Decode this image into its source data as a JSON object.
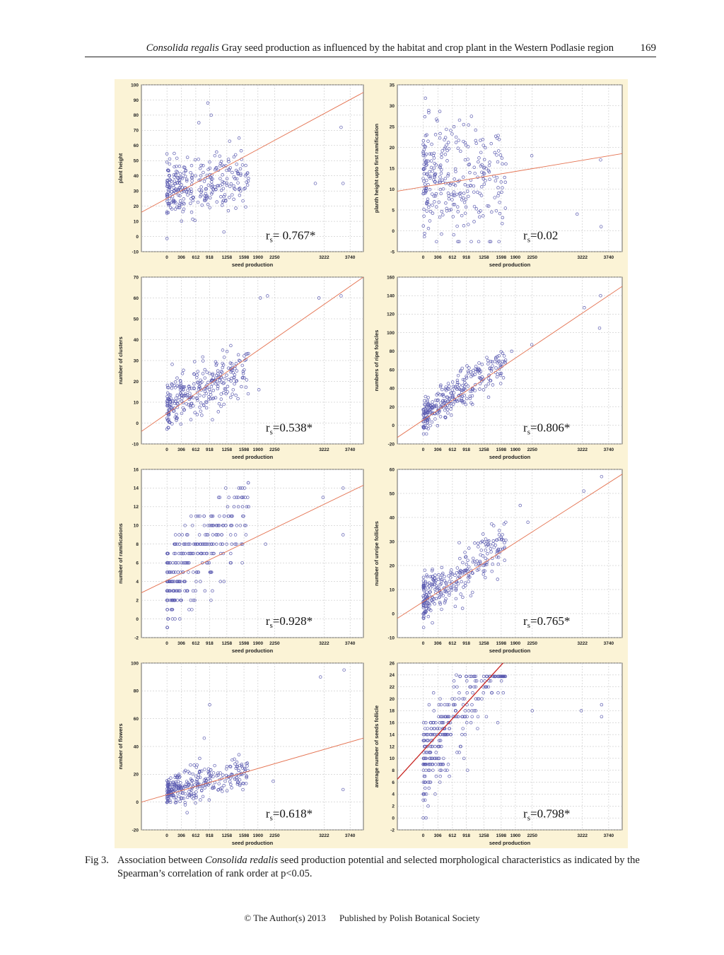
{
  "header": {
    "running_title_italic": "Consolida regalis",
    "running_title_rest": " Gray seed production as influenced by the habitat and crop plant in the Western Podlasie region",
    "page_number": "169"
  },
  "chart_data": [
    {
      "type": "scatter",
      "xlabel": "seed production",
      "ylabel": "plant height",
      "xticks": [
        "0",
        "306",
        "612",
        "918",
        "1258",
        "1598",
        "1900",
        "2250",
        "3222",
        "3740"
      ],
      "ylim": [
        -10,
        100
      ],
      "yticks": [
        -10,
        0,
        10,
        20,
        30,
        40,
        50,
        60,
        70,
        80,
        90,
        100
      ],
      "annotation": "= 0.767*",
      "fit_start": 16,
      "fit_end": 95,
      "cluster": {
        "mean": 30,
        "sd": 9,
        "slope": 0.6
      },
      "outliers": [
        [
          680,
          75
        ],
        [
          880,
          88
        ],
        [
          950,
          80
        ],
        [
          3050,
          35
        ],
        [
          3560,
          72
        ],
        [
          3600,
          35
        ],
        [
          1200,
          3
        ]
      ]
    },
    {
      "type": "scatter",
      "xlabel": "seed production",
      "ylabel": "planth height upto first ramification",
      "xticks": [
        "0",
        "306",
        "612",
        "918",
        "1258",
        "1598",
        "1900",
        "2250",
        "3222",
        "3740"
      ],
      "ylim": [
        -5,
        35
      ],
      "yticks": [
        -5,
        0,
        5,
        10,
        15,
        20,
        25,
        30,
        35
      ],
      "annotation": "=0.02",
      "fit_start": 9.5,
      "fit_end": 18.5,
      "cluster": {
        "mean": 12,
        "sd": 7,
        "slope": 0
      },
      "outliers": [
        [
          2240,
          18
        ],
        [
          3120,
          4
        ],
        [
          3580,
          17
        ],
        [
          3590,
          1
        ]
      ]
    },
    {
      "type": "scatter",
      "xlabel": "seed production",
      "ylabel": "number of clusters",
      "xticks": [
        "0",
        "306",
        "612",
        "918",
        "1258",
        "1598",
        "1900",
        "2250",
        "3222",
        "3740"
      ],
      "ylim": [
        -10,
        70
      ],
      "yticks": [
        -10,
        0,
        10,
        20,
        30,
        40,
        50,
        60,
        70
      ],
      "annotation": "=0.538*",
      "fit_start": -4,
      "fit_end": 70,
      "cluster": {
        "mean": 8,
        "sd": 6,
        "slope": 1.1
      },
      "outliers": [
        [
          1950,
          60
        ],
        [
          2100,
          61
        ],
        [
          3120,
          60
        ],
        [
          3560,
          61
        ],
        [
          1920,
          16
        ],
        [
          1200,
          9
        ]
      ]
    },
    {
      "type": "scatter",
      "xlabel": "seed production",
      "ylabel": "numbers of ripe follicles",
      "xticks": [
        "0",
        "306",
        "612",
        "918",
        "1258",
        "1598",
        "1900",
        "2250",
        "3222",
        "3740"
      ],
      "ylim": [
        -20,
        160
      ],
      "yticks": [
        -20,
        0,
        20,
        40,
        60,
        80,
        100,
        120,
        140,
        160
      ],
      "annotation": "=0.806*",
      "fit_start": -13,
      "fit_end": 150,
      "cluster": {
        "mean": 8,
        "sd": 10,
        "slope": 3.6
      },
      "outliers": [
        [
          3260,
          127
        ],
        [
          3580,
          140
        ],
        [
          3560,
          105
        ],
        [
          1820,
          80
        ],
        [
          2240,
          87
        ]
      ]
    },
    {
      "type": "scatter",
      "xlabel": "seed production",
      "ylabel": "number of ramifications",
      "xticks": [
        "0",
        "306",
        "612",
        "918",
        "1258",
        "1598",
        "1900",
        "2250",
        "3222",
        "3740"
      ],
      "ylim": [
        -2,
        16
      ],
      "yticks": [
        -2,
        0,
        2,
        4,
        6,
        8,
        10,
        12,
        14,
        16
      ],
      "annotation": "=0.928*",
      "fit_start": 2.8,
      "fit_end": 14.3,
      "cluster": {
        "mean": 3.5,
        "sd": 2.2,
        "slope": 0.5,
        "round": 1
      },
      "outliers": [
        [
          3200,
          13
        ],
        [
          3600,
          14
        ],
        [
          3600,
          9
        ],
        [
          2060,
          8
        ]
      ]
    },
    {
      "type": "scatter",
      "xlabel": "seed production",
      "ylabel": "number of unripe follicles",
      "xticks": [
        "0",
        "306",
        "612",
        "918",
        "1258",
        "1598",
        "1900",
        "2250",
        "3222",
        "3740"
      ],
      "ylim": [
        -10,
        60
      ],
      "yticks": [
        -10,
        0,
        10,
        20,
        30,
        40,
        50,
        60
      ],
      "annotation": "=0.765*",
      "fit_start": -2,
      "fit_end": 58,
      "cluster": {
        "mean": 6,
        "sd": 5,
        "slope": 1.3
      },
      "outliers": [
        [
          3250,
          51
        ],
        [
          3600,
          57
        ],
        [
          2160,
          38
        ],
        [
          2000,
          45
        ]
      ]
    },
    {
      "type": "scatter",
      "xlabel": "seed production",
      "ylabel": "number of flowers",
      "xticks": [
        "0",
        "306",
        "612",
        "918",
        "1258",
        "1598",
        "1900",
        "2250",
        "3222",
        "3740"
      ],
      "ylim": [
        -20,
        100
      ],
      "yticks": [
        -20,
        0,
        20,
        40,
        60,
        80,
        100
      ],
      "annotation": "=0.618*",
      "fit_start": 0,
      "fit_end": 46,
      "cluster": {
        "mean": 7,
        "sd": 6,
        "slope": 0.8
      },
      "outliers": [
        [
          3150,
          90
        ],
        [
          3620,
          95
        ],
        [
          3600,
          9
        ],
        [
          920,
          70
        ],
        [
          800,
          46
        ],
        [
          2220,
          15
        ]
      ]
    },
    {
      "type": "scatter",
      "xlabel": "seed production",
      "ylabel": "average number of seeds follicle",
      "xticks": [
        "0",
        "306",
        "612",
        "918",
        "1258",
        "1598",
        "1900",
        "2250",
        "3222",
        "3740"
      ],
      "ylim": [
        -2,
        26
      ],
      "yticks": [
        -2,
        0,
        2,
        4,
        6,
        8,
        10,
        12,
        14,
        16,
        18,
        20,
        22,
        24,
        26
      ],
      "annotation": "=0.798*",
      "fit_start": 6.5,
      "fit_end": 48,
      "cluster": {
        "mean": 10,
        "sd": 3.5,
        "slope": 1.0,
        "round": 1
      },
      "outliers": [
        [
          3200,
          18
        ],
        [
          3600,
          19
        ],
        [
          3600,
          17
        ],
        [
          2250,
          18
        ],
        [
          0,
          0
        ],
        [
          60,
          0
        ],
        [
          700,
          24
        ]
      ]
    }
  ],
  "caption": {
    "label": "Fig 3.",
    "text_before": "Association between ",
    "species_italic": "Consolida redalis",
    "text_after": " seed production potential and selected morphological characteristics as indicated by the Spearman’s correlation of rank order at p<0.05."
  },
  "footer": {
    "copyright": "© The Author(s) 2013",
    "publisher": "Published by Polish Botanical Society"
  },
  "colors": {
    "panel_bg": "#fbf3d6",
    "plot_bg": "#ffffff",
    "point": "#5b5bb0",
    "fit_line": "#e4714f",
    "fit_line_last": "#c8231f"
  }
}
